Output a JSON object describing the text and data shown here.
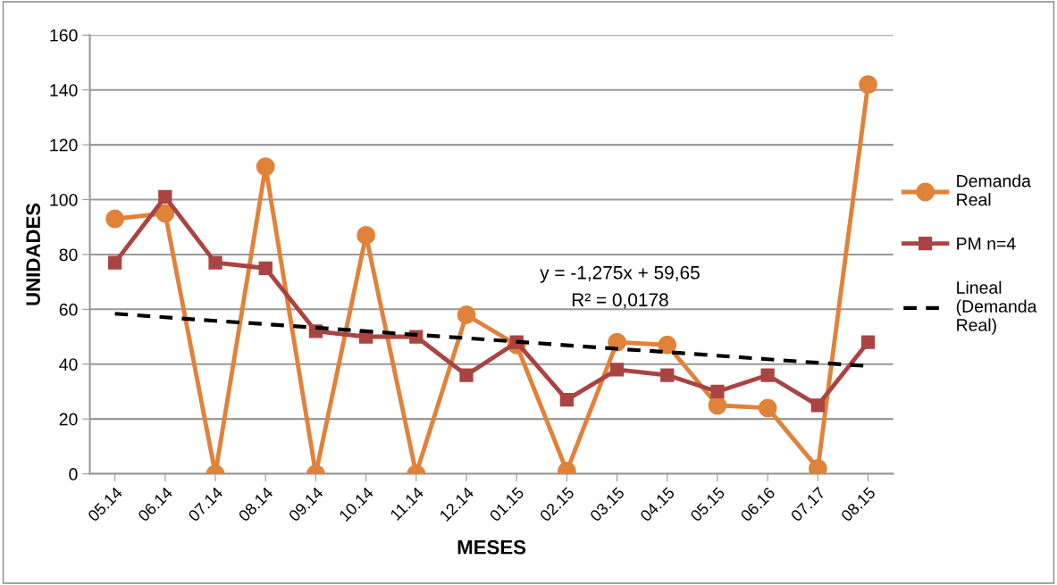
{
  "chart_data": {
    "type": "line",
    "xlabel": "MESES",
    "ylabel": "UNIDADES",
    "categories": [
      "05.14",
      "06.14",
      "07.14",
      "08.14",
      "09.14",
      "10.14",
      "11.14",
      "12.14",
      "01.15",
      "02.15",
      "03.15",
      "04.15",
      "05.15",
      "06.16",
      "07.17",
      "08.15"
    ],
    "series": [
      {
        "name": "Demanda Real",
        "color": "#e0823a",
        "marker": "circle",
        "line_style": "solid",
        "values": [
          93,
          95,
          0,
          112,
          0,
          87,
          0,
          58,
          47,
          1,
          48,
          47,
          25,
          24,
          2,
          142
        ]
      },
      {
        "name": "PM n=4",
        "color": "#a94442",
        "marker": "square",
        "line_style": "solid",
        "values": [
          77,
          101,
          77,
          75,
          52,
          50,
          50,
          36,
          48,
          27,
          38,
          36,
          30,
          36,
          25,
          48
        ]
      },
      {
        "name": "Lineal (Demanda Real)",
        "color": "#000000",
        "marker": "none",
        "line_style": "dashed",
        "values": [
          58.4,
          57.1,
          55.8,
          54.6,
          53.3,
          52.0,
          50.7,
          49.5,
          48.2,
          46.9,
          45.6,
          44.4,
          43.1,
          41.8,
          40.5,
          39.3
        ]
      }
    ],
    "annotations": [
      "y = -1,275x + 59,65",
      "R² = 0,0178"
    ],
    "ylim": [
      0,
      160
    ],
    "yticks": [
      0,
      20,
      40,
      60,
      80,
      100,
      120,
      140,
      160
    ],
    "grid": "y",
    "legend": "right"
  }
}
